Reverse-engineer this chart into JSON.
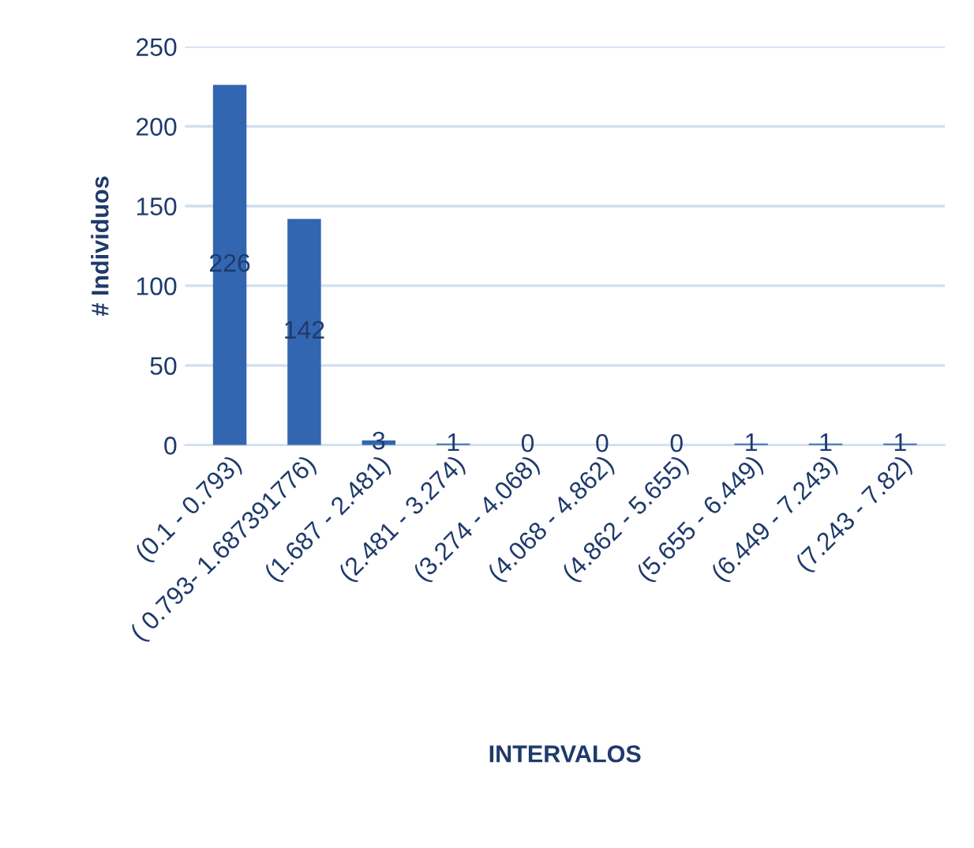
{
  "chart_data": {
    "type": "bar",
    "xlabel": "INTERVALOS",
    "ylabel": "# Individuos",
    "categories": [
      "(0.1 - 0.793)",
      "( 0.793- 1.687391776)",
      "(1.687 - 2.481)",
      "(2.481 - 3.274)",
      "(3.274 - 4.068)",
      "(4.068 - 4.862)",
      "(4.862 - 5.655)",
      "(5.655 - 6.449)",
      "(6.449 - 7.243)",
      "(7.243 - 7.82)"
    ],
    "values": [
      226,
      142,
      3,
      1,
      0,
      0,
      0,
      1,
      1,
      1
    ],
    "color": "#3366b0",
    "ylim": [
      0,
      250
    ],
    "yticks": [
      0,
      50,
      100,
      150,
      200,
      250
    ],
    "grid": "y",
    "data_labels": true
  }
}
